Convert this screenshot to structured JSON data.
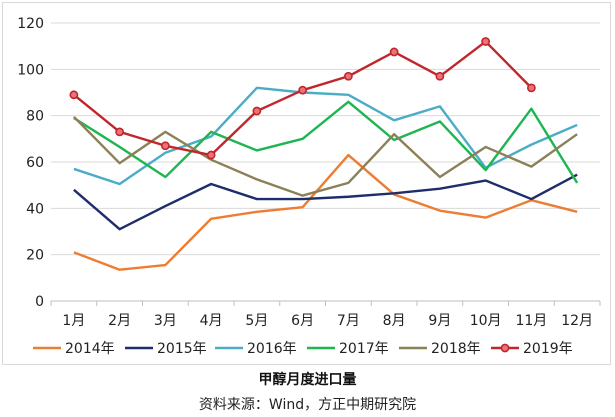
{
  "caption": "甲醇月度进口量",
  "source": "资料来源：Wind，方正中期研究院",
  "chart_data": {
    "type": "line",
    "title": "",
    "xlabel": "",
    "ylabel": "",
    "categories": [
      "1月",
      "2月",
      "3月",
      "4月",
      "5月",
      "6月",
      "7月",
      "8月",
      "9月",
      "10月",
      "11月",
      "12月"
    ],
    "ylim": [
      0,
      120
    ],
    "yticks": [
      0,
      20,
      40,
      60,
      80,
      100,
      120
    ],
    "grid": "horizontal",
    "legend_position": "bottom",
    "series": [
      {
        "name": "2014年",
        "color": "#ed7d31",
        "marker": false,
        "values": [
          21,
          13.5,
          15.5,
          35.5,
          38.5,
          40.5,
          63,
          46,
          39,
          36,
          43.5,
          38.5
        ]
      },
      {
        "name": "2015年",
        "color": "#1f2d6b",
        "marker": false,
        "values": [
          48,
          31,
          41,
          50.5,
          44,
          44,
          45,
          46.5,
          48.5,
          52,
          44,
          54.5
        ]
      },
      {
        "name": "2016年",
        "color": "#4bacc6",
        "marker": false,
        "values": [
          57,
          50.5,
          64,
          71,
          92,
          90,
          89,
          78,
          84,
          57.5,
          67.5,
          76
        ]
      },
      {
        "name": "2017年",
        "color": "#1fb551",
        "marker": false,
        "values": [
          79,
          66.5,
          53.5,
          73,
          65,
          70,
          86,
          69.5,
          77.5,
          56.5,
          83,
          51
        ]
      },
      {
        "name": "2018年",
        "color": "#8c8058",
        "marker": false,
        "values": [
          79.5,
          59.5,
          73,
          61,
          52.5,
          45.5,
          51,
          72,
          53.5,
          66.5,
          58,
          72
        ]
      },
      {
        "name": "2019年",
        "color": "#c0262c",
        "marker": true,
        "values": [
          89,
          73,
          67,
          63,
          82,
          91,
          97,
          107.5,
          97,
          112,
          92,
          null
        ]
      }
    ]
  }
}
